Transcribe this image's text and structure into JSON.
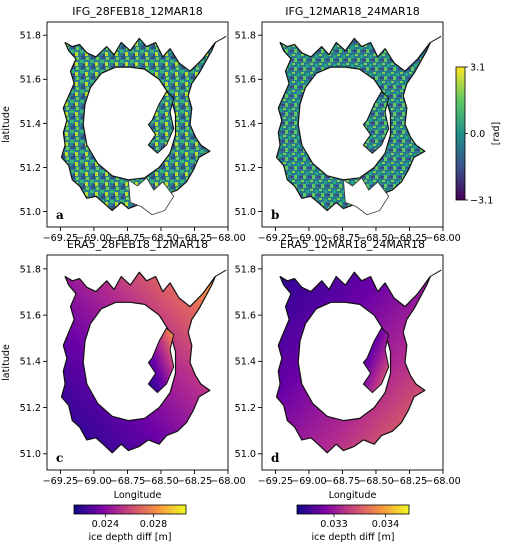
{
  "chart_data": [
    {
      "type": "heatmap",
      "panel": "a",
      "title": "IFG_28FEB18_12MAR18",
      "xlabel": "",
      "ylabel": "latitude",
      "xticks": [
        "−69.25",
        "−69.00",
        "−68.75",
        "−68.50",
        "−68.25",
        "−68.00"
      ],
      "yticks": [
        "51.0",
        "51.2",
        "51.4",
        "51.6",
        "51.8"
      ],
      "xlim": [
        -69.35,
        -68.0
      ],
      "ylim": [
        50.93,
        51.86
      ],
      "colormap": "viridis"
    },
    {
      "type": "heatmap",
      "panel": "b",
      "title": "IFG_12MAR18_24MAR18",
      "xlabel": "",
      "ylabel": "",
      "xticks": [
        "−69.25",
        "−69.00",
        "−68.75",
        "−68.50",
        "−68.25",
        "−68.00"
      ],
      "yticks": [
        "51.0",
        "51.2",
        "51.4",
        "51.6",
        "51.8"
      ],
      "xlim": [
        -69.35,
        -68.0
      ],
      "ylim": [
        50.93,
        51.86
      ],
      "colormap": "viridis"
    },
    {
      "type": "heatmap",
      "panel": "c",
      "title": "ERA5_28FEB18_12MAR18",
      "xlabel": "Longitude",
      "ylabel": "latitude",
      "xticks": [
        "−69.25",
        "−69.00",
        "−68.75",
        "−68.50",
        "−68.25",
        "−68.00"
      ],
      "yticks": [
        "51.0",
        "51.2",
        "51.4",
        "51.6",
        "51.8"
      ],
      "xlim": [
        -69.35,
        -68.0
      ],
      "ylim": [
        50.93,
        51.86
      ],
      "colormap": "plasma"
    },
    {
      "type": "heatmap",
      "panel": "d",
      "title": "ERA5_12MAR18_24MAR18",
      "xlabel": "Longitude",
      "ylabel": "",
      "xticks": [
        "−69.25",
        "−69.00",
        "−68.75",
        "−68.50",
        "−68.25",
        "−68.00"
      ],
      "yticks": [
        "51.0",
        "51.2",
        "51.4",
        "51.6",
        "51.8"
      ],
      "xlim": [
        -69.35,
        -68.0
      ],
      "ylim": [
        50.93,
        51.86
      ],
      "colormap": "plasma"
    }
  ],
  "colorbars": {
    "phase": {
      "label": "[rad]",
      "ticks": [
        "3.1",
        "0.0",
        "−3.1"
      ],
      "colormap": "viridis",
      "range": [
        -3.1,
        3.1
      ]
    },
    "era_c": {
      "label": "ice depth diff [m]",
      "ticks": [
        "0.024",
        "0.028"
      ],
      "colormap": "plasma"
    },
    "era_d": {
      "label": "ice depth diff [m]",
      "ticks": [
        "0.033",
        "0.034"
      ],
      "colormap": "plasma"
    }
  },
  "colors": {
    "viridis": [
      "#440154",
      "#3b528b",
      "#21918c",
      "#5ec962",
      "#fde725"
    ],
    "plasma": [
      "#0d0887",
      "#7e03a8",
      "#cc4778",
      "#f89540",
      "#f0f921"
    ]
  }
}
